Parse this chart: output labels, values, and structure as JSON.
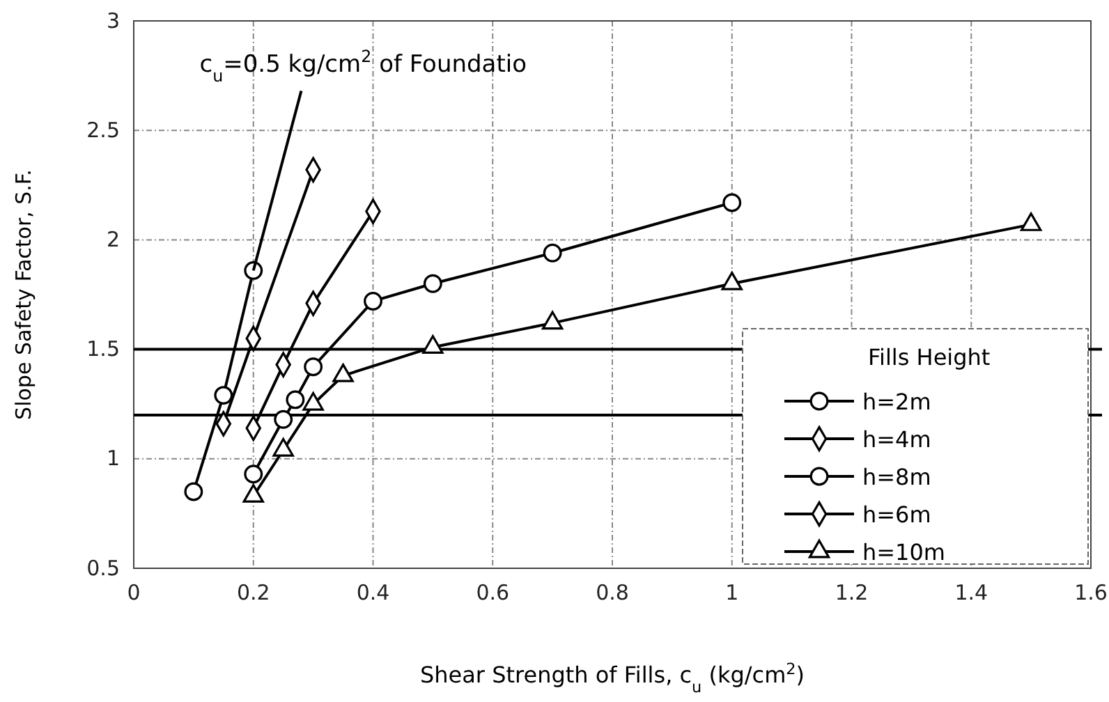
{
  "chart_data": {
    "type": "line",
    "xlabel": "Shear Strength of Fills, c$_{u}$ (kg/cm$^{2}$)",
    "ylabel": "Slope Safety Factor, S.F.",
    "legend_title": "Fills Height",
    "annotations": [
      {
        "text": "c$_{u}$=0.5 kg/cm$^{2}$ of Foundatio",
        "x": 0.28,
        "y": 2.68
      }
    ],
    "xlim": [
      0,
      1.6
    ],
    "xticks": [
      0,
      0.2,
      0.4,
      0.6,
      0.8,
      1,
      1.2,
      1.4,
      1.6
    ],
    "ylim": [
      0.5,
      3
    ],
    "yticks": [
      0.5,
      1,
      1.5,
      2,
      2.5,
      3
    ],
    "grid": true,
    "legend": "bottom right",
    "line_style": "solid",
    "ref_lines": [
      {
        "axis": "y",
        "value": 1.5,
        "color": "#000000"
      },
      {
        "axis": "y",
        "value": 1.2,
        "color": "#000000"
      }
    ],
    "series": [
      {
        "name": "h=2m",
        "color": "#000000",
        "marker": "circle",
        "x": [
          0.1,
          0.15,
          0.2
        ],
        "values": [
          0.85,
          1.29,
          1.86
        ]
      },
      {
        "name": "h=4m",
        "color": "#000000",
        "marker": "diamond",
        "x": [
          0.15,
          0.2,
          0.3
        ],
        "values": [
          1.16,
          1.55,
          2.32
        ]
      },
      {
        "name": "h=8m",
        "color": "#000000",
        "marker": "circle",
        "x": [
          0.2,
          0.25,
          0.27,
          0.3,
          0.4,
          0.5,
          0.7,
          1.0
        ],
        "values": [
          0.93,
          1.18,
          1.27,
          1.42,
          1.72,
          1.8,
          1.94,
          2.17
        ]
      },
      {
        "name": "h=6m",
        "color": "#000000",
        "marker": "diamond",
        "x": [
          0.2,
          0.25,
          0.3,
          0.4
        ],
        "values": [
          1.14,
          1.43,
          1.71,
          2.13
        ]
      },
      {
        "name": "h=10m",
        "color": "#000000",
        "marker": "triangle",
        "x": [
          0.2,
          0.25,
          0.3,
          0.35,
          0.5,
          0.7,
          1.0,
          1.5
        ],
        "values": [
          0.83,
          1.04,
          1.25,
          1.38,
          1.51,
          1.62,
          1.8,
          2.07
        ]
      },
      {
        "color": "#000000",
        "marker": "none",
        "x": [
          0.2,
          0.28
        ],
        "values": [
          1.86,
          2.68
        ]
      }
    ]
  }
}
